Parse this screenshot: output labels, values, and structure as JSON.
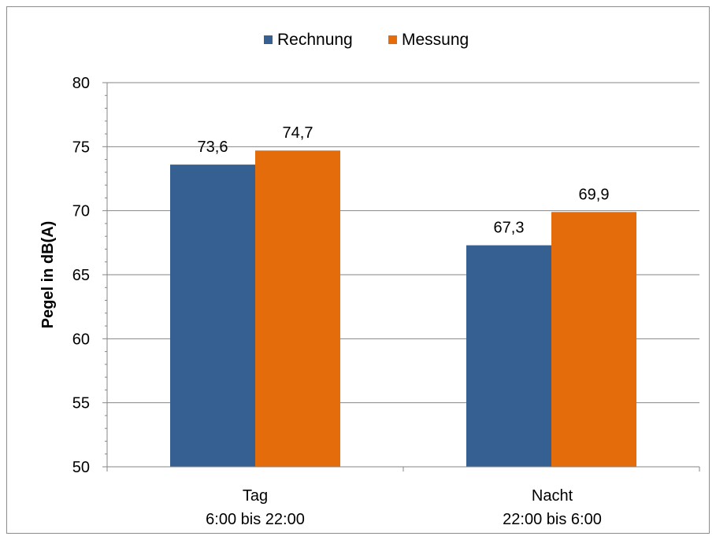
{
  "chart_data": {
    "type": "bar",
    "ylabel": "Pegel in dB(A)",
    "ylim": [
      50,
      80
    ],
    "yticks": [
      50,
      55,
      60,
      65,
      70,
      75,
      80
    ],
    "grid": true,
    "legend_position": "top-center",
    "categories": [
      {
        "line1": "Tag",
        "line2": "6:00 bis 22:00"
      },
      {
        "line1": "Nacht",
        "line2": "22:00 bis 6:00"
      }
    ],
    "series": [
      {
        "name": "Rechnung",
        "color": "#376092",
        "values": [
          73.6,
          67.3
        ],
        "labels": [
          "73,6",
          "67,3"
        ]
      },
      {
        "name": "Messung",
        "color": "#e46c0a",
        "values": [
          74.7,
          69.9
        ],
        "labels": [
          "74,7",
          "69,9"
        ]
      }
    ]
  }
}
